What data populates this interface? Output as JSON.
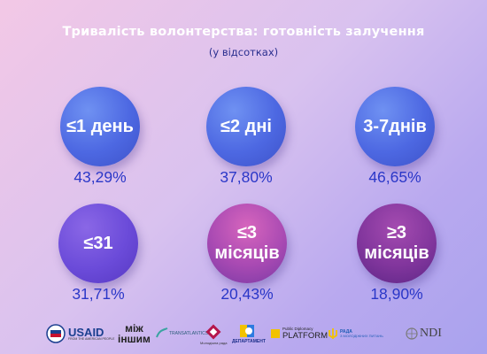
{
  "header": {
    "title": "Тривалість волонтерства: готовність залучення",
    "subtitle": "(у відсотках)"
  },
  "chart_data": {
    "type": "bubble-grid",
    "title": "Тривалість волонтерства: готовність залучення",
    "subtitle": "(у відсотках)",
    "categories": [
      "≤1 день",
      "≤2 дні",
      "3-7днів",
      "≤31",
      "≤3 місяців",
      "≥3 місяців"
    ],
    "values": [
      43.29,
      37.8,
      46.65,
      31.71,
      20.43,
      18.9
    ],
    "value_labels": [
      "43,29%",
      "37,80%",
      "46,65%",
      "31,71%",
      "20,43%",
      "18,90%"
    ],
    "circle_colors": [
      "#4d68e2",
      "#4d68e2",
      "#4d68e2",
      "#6b4bd9",
      "#a94ab3",
      "#82369d"
    ]
  },
  "items": [
    {
      "label_lines": [
        "≤1 день"
      ],
      "value": "43,29%"
    },
    {
      "label_lines": [
        "≤2 дні"
      ],
      "value": "37,80%"
    },
    {
      "label_lines": [
        "3-7днів"
      ],
      "value": "46,65%"
    },
    {
      "label_lines": [
        "≤31"
      ],
      "value": "31,71%"
    },
    {
      "label_lines": [
        "≤3",
        "місяців"
      ],
      "value": "20,43%"
    },
    {
      "label_lines": [
        "≥3",
        "місяців"
      ],
      "value": "18,90%"
    }
  ],
  "logos": {
    "usaid_text": "USAID",
    "usaid_sub": "FROM THE AMERICAN PEOPLE",
    "mizh_line1": "між",
    "mizh_line2": "іншим",
    "transatlantic": "TRANSATLANTICS",
    "youth_council": "Молодіжна рада",
    "department": "ДЕПАРТАМЕНТ",
    "pd_line1": "Public Diplomacy",
    "pd_line2": "PLATFORM",
    "rada_line1": "РАДА",
    "rada_line2": "З МОЛОДІЖНИХ ПИТАНЬ",
    "ndi": "NDI"
  }
}
